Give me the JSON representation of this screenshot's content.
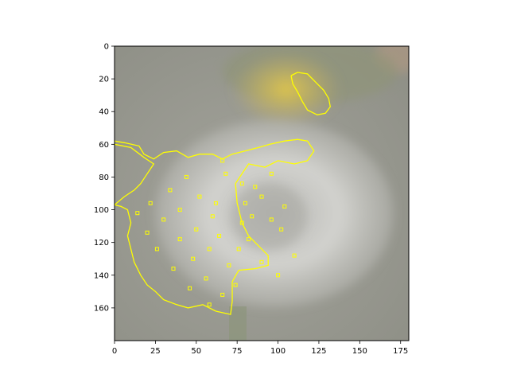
{
  "chart_data": {
    "type": "image",
    "title": "",
    "xlabel": "",
    "ylabel": "",
    "xlim": [
      0,
      180
    ],
    "ylim": [
      180,
      0
    ],
    "x_ticks": [
      0,
      25,
      50,
      75,
      100,
      125,
      150,
      175
    ],
    "y_ticks": [
      0,
      20,
      40,
      60,
      80,
      100,
      120,
      140,
      160
    ],
    "grid": false,
    "legend": "none",
    "image": {
      "subject": "dandelion seed head",
      "background_color": "#9c9c94",
      "flower_color": "#d4d4d0",
      "accent_blob_color": "#d9c24e"
    },
    "overlay": {
      "color": "#ffff00",
      "regions": [
        {
          "name": "small-contour",
          "points": [
            [
              108,
              18
            ],
            [
              112,
              16
            ],
            [
              118,
              17
            ],
            [
              123,
              22
            ],
            [
              128,
              27
            ],
            [
              131,
              32
            ],
            [
              132,
              37
            ],
            [
              129,
              41
            ],
            [
              124,
              42
            ],
            [
              118,
              39
            ],
            [
              115,
              34
            ],
            [
              112,
              28
            ],
            [
              109,
              23
            ],
            [
              108,
              18
            ]
          ]
        },
        {
          "name": "large-contour",
          "points": [
            [
              0,
              58
            ],
            [
              6,
              59
            ],
            [
              15,
              61
            ],
            [
              18,
              66
            ],
            [
              24,
              69
            ],
            [
              30,
              65
            ],
            [
              38,
              64
            ],
            [
              45,
              68
            ],
            [
              52,
              66
            ],
            [
              60,
              66
            ],
            [
              66,
              69
            ],
            [
              72,
              66
            ],
            [
              80,
              64
            ],
            [
              88,
              62
            ],
            [
              95,
              60
            ],
            [
              104,
              58
            ],
            [
              112,
              57
            ],
            [
              118,
              58
            ],
            [
              122,
              64
            ],
            [
              118,
              70
            ],
            [
              110,
              72
            ],
            [
              100,
              70
            ],
            [
              92,
              74
            ],
            [
              82,
              72
            ],
            [
              78,
              78
            ],
            [
              74,
              84
            ],
            [
              75,
              96
            ],
            [
              78,
              108
            ],
            [
              82,
              116
            ],
            [
              88,
              122
            ],
            [
              94,
              128
            ],
            [
              94,
              134
            ],
            [
              86,
              136
            ],
            [
              76,
              137
            ],
            [
              72,
              144
            ],
            [
              72,
              156
            ],
            [
              71,
              164
            ],
            [
              62,
              162
            ],
            [
              54,
              158
            ],
            [
              45,
              160
            ],
            [
              38,
              158
            ],
            [
              30,
              155
            ],
            [
              25,
              150
            ],
            [
              20,
              146
            ],
            [
              16,
              140
            ],
            [
              12,
              132
            ],
            [
              10,
              124
            ],
            [
              8,
              116
            ],
            [
              10,
              108
            ],
            [
              8,
              100
            ],
            [
              4,
              98
            ],
            [
              0,
              97
            ],
            [
              6,
              92
            ],
            [
              12,
              88
            ],
            [
              16,
              84
            ],
            [
              20,
              78
            ],
            [
              24,
              72
            ],
            [
              18,
              68
            ],
            [
              10,
              62
            ],
            [
              0,
              60
            ]
          ]
        }
      ],
      "speckles": [
        [
          66,
          70
        ],
        [
          68,
          78
        ],
        [
          78,
          84
        ],
        [
          80,
          96
        ],
        [
          84,
          104
        ],
        [
          90,
          92
        ],
        [
          96,
          106
        ],
        [
          102,
          112
        ],
        [
          82,
          118
        ],
        [
          76,
          124
        ],
        [
          90,
          132
        ],
        [
          100,
          140
        ],
        [
          110,
          128
        ],
        [
          104,
          98
        ],
        [
          78,
          108
        ],
        [
          86,
          86
        ],
        [
          96,
          78
        ],
        [
          60,
          104
        ],
        [
          64,
          116
        ],
        [
          70,
          134
        ],
        [
          74,
          146
        ],
        [
          66,
          152
        ],
        [
          56,
          142
        ],
        [
          48,
          130
        ],
        [
          40,
          118
        ],
        [
          30,
          106
        ],
        [
          22,
          96
        ],
        [
          34,
          88
        ],
        [
          44,
          80
        ],
        [
          52,
          92
        ],
        [
          58,
          124
        ],
        [
          26,
          124
        ],
        [
          36,
          136
        ],
        [
          46,
          148
        ],
        [
          58,
          158
        ],
        [
          20,
          114
        ],
        [
          14,
          102
        ],
        [
          40,
          100
        ],
        [
          50,
          112
        ],
        [
          62,
          96
        ]
      ]
    }
  }
}
